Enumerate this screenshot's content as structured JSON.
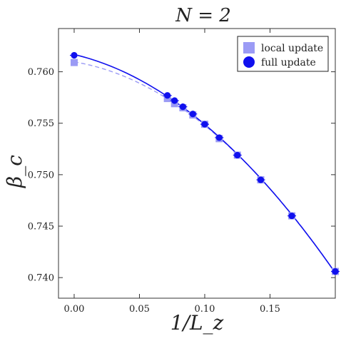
{
  "chart_data": {
    "type": "scatter",
    "title": "N = 2",
    "xlabel": "1/L_z",
    "ylabel": "β_c",
    "xlim": [
      -0.012,
      0.2
    ],
    "ylim": [
      0.738,
      0.7642
    ],
    "x_ticks": [
      0.0,
      0.05,
      0.1,
      0.15
    ],
    "x_tick_labels": [
      "0.00",
      "0.05",
      "0.10",
      "0.15"
    ],
    "y_ticks": [
      0.74,
      0.745,
      0.75,
      0.755,
      0.76
    ],
    "y_tick_labels": [
      "0.740",
      "0.745",
      "0.750",
      "0.755",
      "0.760"
    ],
    "grid": false,
    "legend_position": "top-right",
    "series": [
      {
        "name": "local update",
        "marker": "square",
        "color": "#9b9bf5",
        "fit_style": "dashed",
        "x": [
          0.0,
          0.0714,
          0.0769,
          0.0833,
          0.0909,
          0.1,
          0.1111,
          0.125,
          0.1429,
          0.1667,
          0.2
        ],
        "y": [
          0.7609,
          0.7574,
          0.7569,
          0.7565,
          0.7558,
          0.7549,
          0.7535,
          0.7519,
          0.7495,
          0.746,
          0.7406
        ]
      },
      {
        "name": "full update",
        "marker": "circle",
        "color": "#1010ee",
        "fit_style": "solid",
        "x": [
          0.0,
          0.0714,
          0.0769,
          0.0833,
          0.0909,
          0.1,
          0.1111,
          0.125,
          0.1429,
          0.1667,
          0.2
        ],
        "y": [
          0.7616,
          0.7577,
          0.7572,
          0.7566,
          0.7559,
          0.7549,
          0.7536,
          0.7519,
          0.7495,
          0.746,
          0.7406
        ]
      }
    ]
  }
}
